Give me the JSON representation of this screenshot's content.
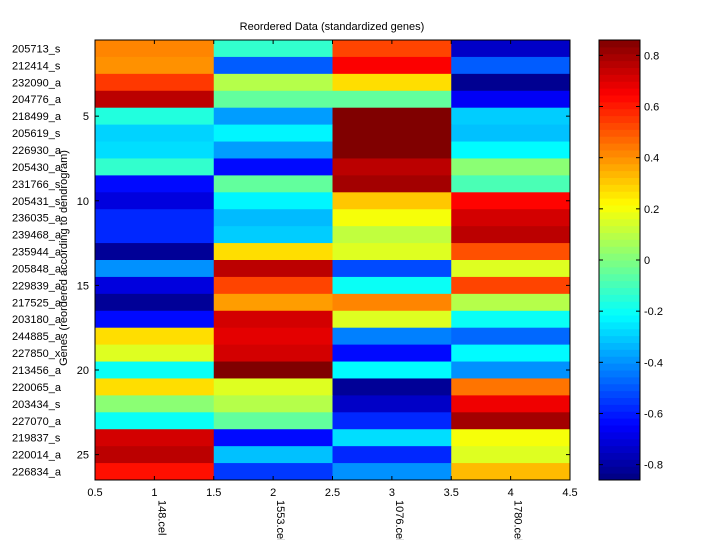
{
  "chart_data": {
    "type": "heatmap",
    "title": "Reordered Data (standardized genes)",
    "xlabel": "",
    "ylabel": "Genes (reordered according to dendrogram)",
    "xlim": [
      0.5,
      4.5
    ],
    "ylim": [
      0.5,
      26.5
    ],
    "x_ticks": [
      "0.5",
      "1",
      "1.5",
      "2",
      "2.5",
      "3",
      "3.5",
      "4",
      "4.5"
    ],
    "x_tick_values": [
      0.5,
      1,
      1.5,
      2,
      2.5,
      3,
      3.5,
      4,
      4.5
    ],
    "y_ticks": [
      "5",
      "10",
      "15",
      "20",
      "25"
    ],
    "y_tick_values": [
      5,
      10,
      15,
      20,
      25
    ],
    "columns": [
      "148.cel",
      "1553.cel",
      "1076.cel",
      "1780.cel"
    ],
    "rows": [
      "205713_s",
      "212414_s",
      "232090_a",
      "204776_a",
      "218499_a",
      "205619_s",
      "226930_a",
      "205430_a",
      "231766_s",
      "205431_s",
      "236035_a",
      "239468_a",
      "235944_a",
      "205848_a",
      "229839_a",
      "217525_a",
      "203180_a",
      "244885_a",
      "227850_x",
      "213456_a",
      "220065_a",
      "203434_s",
      "227070_a",
      "219837_s",
      "220014_a",
      "226834_a"
    ],
    "values": [
      [
        0.42,
        -0.13,
        0.53,
        -0.74
      ],
      [
        0.4,
        -0.49,
        0.65,
        -0.49
      ],
      [
        0.55,
        0.09,
        0.27,
        -0.83
      ],
      [
        0.76,
        -0.05,
        -0.05,
        -0.66
      ],
      [
        -0.16,
        -0.38,
        0.86,
        -0.3
      ],
      [
        -0.29,
        -0.23,
        0.86,
        -0.32
      ],
      [
        -0.27,
        -0.38,
        0.86,
        -0.22
      ],
      [
        -0.13,
        -0.63,
        0.76,
        0.02
      ],
      [
        -0.63,
        -0.05,
        0.8,
        -0.09
      ],
      [
        -0.7,
        -0.23,
        0.31,
        0.64
      ],
      [
        -0.58,
        -0.33,
        0.2,
        0.72
      ],
      [
        -0.58,
        -0.3,
        0.11,
        0.76
      ],
      [
        -0.82,
        0.27,
        0.16,
        0.51
      ],
      [
        -0.4,
        0.76,
        -0.52,
        0.16
      ],
      [
        -0.7,
        0.53,
        -0.2,
        0.53
      ],
      [
        -0.82,
        0.38,
        0.42,
        0.09
      ],
      [
        -0.63,
        0.72,
        0.16,
        -0.2
      ],
      [
        0.27,
        0.69,
        -0.43,
        -0.47
      ],
      [
        0.16,
        0.72,
        -0.63,
        -0.22
      ],
      [
        -0.2,
        0.86,
        -0.22,
        -0.4
      ],
      [
        0.27,
        0.16,
        -0.82,
        0.45
      ],
      [
        0.02,
        0.09,
        -0.74,
        0.67
      ],
      [
        -0.2,
        -0.05,
        -0.58,
        0.8
      ],
      [
        0.72,
        -0.63,
        -0.27,
        0.2
      ],
      [
        0.76,
        -0.32,
        -0.58,
        0.16
      ],
      [
        0.62,
        -0.55,
        -0.4,
        0.33
      ]
    ],
    "colorbar": {
      "colormap": "jet",
      "clim": [
        -0.86,
        0.86
      ],
      "ticks": [
        "-0.8",
        "-0.6",
        "-0.4",
        "-0.2",
        "0",
        "0.2",
        "0.4",
        "0.6",
        "0.8"
      ],
      "tick_values": [
        -0.8,
        -0.6,
        -0.4,
        -0.2,
        0,
        0.2,
        0.4,
        0.6,
        0.8
      ],
      "position": "right"
    },
    "grid": false
  }
}
